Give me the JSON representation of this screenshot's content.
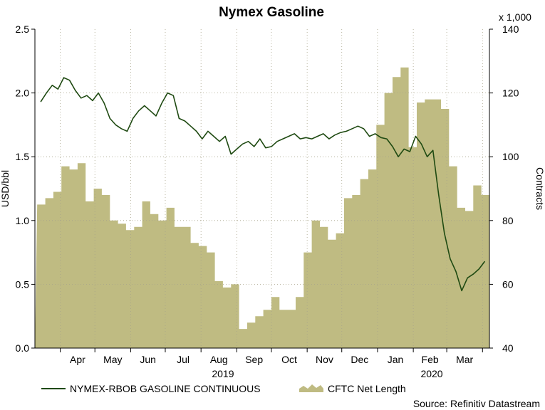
{
  "chart_data": {
    "type": "line",
    "title": "Nymex Gasoline",
    "ylabel": "USD/bbl",
    "y2label": "Contracts",
    "y2_multiplier_label": "x 1,000",
    "source": "Source: Refinitiv Datastream",
    "ylim": [
      0,
      2.5
    ],
    "y2lim": [
      40,
      140
    ],
    "y_ticks": [
      "0.0",
      "0.5",
      "1.0",
      "1.5",
      "2.0",
      "2.5"
    ],
    "y2_ticks": [
      "40",
      "60",
      "80",
      "100",
      "120",
      "140"
    ],
    "x_ticks": [
      "Apr",
      "May",
      "Jun",
      "Jul",
      "Aug",
      "Sep",
      "Oct",
      "Nov",
      "Dec",
      "Jan",
      "Feb",
      "Mar"
    ],
    "x_years": [
      "2019",
      "2020"
    ],
    "grid": true,
    "legend": "bottom",
    "colors": {
      "line": "#1f4a12",
      "area": "#bfbb82"
    },
    "series": [
      {
        "name": "NYMEX-RBOB GASOLINE CONTINUOUS",
        "type": "line",
        "axis": "left",
        "x": [
          "2019-03-15",
          "2019-03-20",
          "2019-03-25",
          "2019-03-30",
          "2019-04-04",
          "2019-04-09",
          "2019-04-14",
          "2019-04-19",
          "2019-04-24",
          "2019-04-29",
          "2019-05-04",
          "2019-05-09",
          "2019-05-14",
          "2019-05-19",
          "2019-05-24",
          "2019-05-29",
          "2019-06-03",
          "2019-06-08",
          "2019-06-13",
          "2019-06-18",
          "2019-06-23",
          "2019-06-28",
          "2019-07-03",
          "2019-07-08",
          "2019-07-13",
          "2019-07-18",
          "2019-07-23",
          "2019-07-28",
          "2019-08-02",
          "2019-08-07",
          "2019-08-12",
          "2019-08-17",
          "2019-08-22",
          "2019-08-27",
          "2019-09-01",
          "2019-09-06",
          "2019-09-11",
          "2019-09-16",
          "2019-09-21",
          "2019-09-26",
          "2019-10-01",
          "2019-10-06",
          "2019-10-11",
          "2019-10-16",
          "2019-10-21",
          "2019-10-26",
          "2019-10-31",
          "2019-11-05",
          "2019-11-10",
          "2019-11-15",
          "2019-11-20",
          "2019-11-25",
          "2019-11-30",
          "2019-12-05",
          "2019-12-10",
          "2019-12-15",
          "2019-12-20",
          "2019-12-25",
          "2019-12-30",
          "2020-01-04",
          "2020-01-09",
          "2020-01-14",
          "2020-01-19",
          "2020-01-24",
          "2020-01-29",
          "2020-02-03",
          "2020-02-08",
          "2020-02-13",
          "2020-02-18",
          "2020-02-23",
          "2020-02-28",
          "2020-03-04",
          "2020-03-09",
          "2020-03-14",
          "2020-03-19",
          "2020-03-24",
          "2020-03-29",
          "2020-04-03"
        ],
        "values": [
          1.93,
          2.0,
          2.06,
          2.03,
          2.12,
          2.1,
          2.02,
          1.96,
          1.98,
          1.94,
          2.0,
          1.92,
          1.8,
          1.75,
          1.72,
          1.7,
          1.8,
          1.86,
          1.9,
          1.86,
          1.82,
          1.92,
          2.0,
          1.98,
          1.8,
          1.78,
          1.74,
          1.7,
          1.64,
          1.7,
          1.66,
          1.62,
          1.66,
          1.52,
          1.56,
          1.6,
          1.62,
          1.58,
          1.64,
          1.57,
          1.58,
          1.62,
          1.64,
          1.66,
          1.68,
          1.64,
          1.65,
          1.64,
          1.66,
          1.68,
          1.64,
          1.67,
          1.69,
          1.7,
          1.72,
          1.74,
          1.72,
          1.66,
          1.68,
          1.65,
          1.64,
          1.58,
          1.5,
          1.56,
          1.54,
          1.66,
          1.6,
          1.5,
          1.55,
          1.2,
          0.9,
          0.7,
          0.6,
          0.45,
          0.55,
          0.58,
          0.62,
          0.68
        ]
      },
      {
        "name": "CFTC Net Length",
        "type": "area",
        "axis": "right",
        "x": [
          "2019-03-12",
          "2019-03-19",
          "2019-03-26",
          "2019-04-02",
          "2019-04-09",
          "2019-04-16",
          "2019-04-23",
          "2019-04-30",
          "2019-05-07",
          "2019-05-14",
          "2019-05-21",
          "2019-05-28",
          "2019-06-04",
          "2019-06-11",
          "2019-06-18",
          "2019-06-25",
          "2019-07-02",
          "2019-07-09",
          "2019-07-16",
          "2019-07-23",
          "2019-07-30",
          "2019-08-06",
          "2019-08-13",
          "2019-08-20",
          "2019-08-27",
          "2019-09-03",
          "2019-09-10",
          "2019-09-17",
          "2019-09-24",
          "2019-10-01",
          "2019-10-08",
          "2019-10-15",
          "2019-10-22",
          "2019-10-29",
          "2019-11-05",
          "2019-11-12",
          "2019-11-19",
          "2019-11-26",
          "2019-12-03",
          "2019-12-10",
          "2019-12-17",
          "2019-12-24",
          "2019-12-31",
          "2020-01-07",
          "2020-01-14",
          "2020-01-21",
          "2020-01-28",
          "2020-02-04",
          "2020-02-11",
          "2020-02-18",
          "2020-02-25",
          "2020-03-03",
          "2020-03-10",
          "2020-03-17",
          "2020-03-24",
          "2020-03-31",
          "2020-04-07"
        ],
        "values": [
          85,
          87,
          89,
          97,
          96,
          98,
          86,
          90,
          88,
          80,
          79,
          77,
          78,
          86,
          82,
          80,
          84,
          78,
          78,
          73,
          72,
          70,
          61,
          59,
          60,
          46,
          48,
          50,
          52,
          56,
          52,
          52,
          56,
          70,
          80,
          78,
          74,
          76,
          87,
          88,
          93,
          96,
          110,
          120,
          125,
          128,
          103,
          117,
          118,
          118,
          115,
          97,
          84,
          83,
          91,
          88,
          88
        ]
      }
    ]
  }
}
